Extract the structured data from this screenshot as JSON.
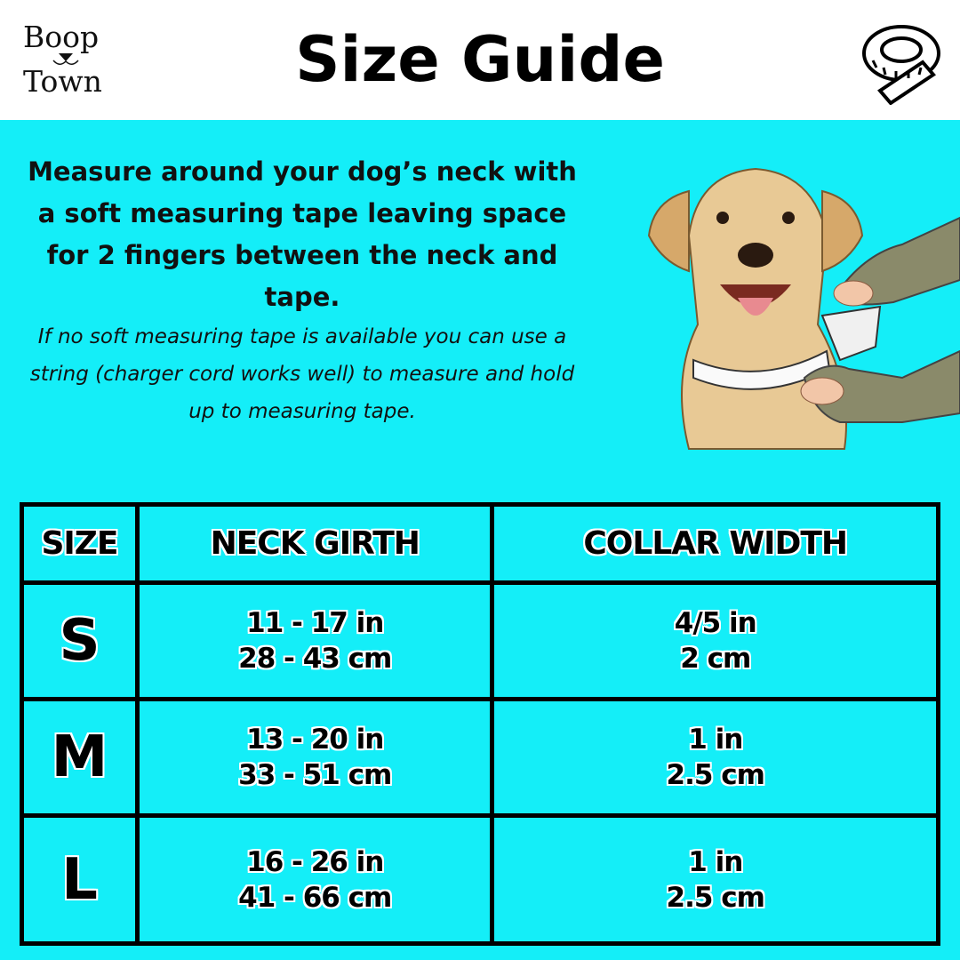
{
  "brand": {
    "line1": "Boop",
    "line2": "Town"
  },
  "header": {
    "title": "Size Guide",
    "icon": "measuring-tape-icon"
  },
  "intro": {
    "instruction": "Measure around your dog’s neck with a soft measuring tape leaving space for 2 fingers between the neck and tape.",
    "note": "If no soft measuring tape is available you can use a string (charger cord works well) to measure and hold up to measuring tape."
  },
  "colors": {
    "background": "#14eef8",
    "header": "#ffffff",
    "text": "#000000"
  },
  "table": {
    "headers": [
      "SIZE",
      "NECK GIRTH",
      "COLLAR WIDTH"
    ],
    "rows": [
      {
        "size": "S",
        "girth_in": "11 - 17 in",
        "girth_cm": "28 - 43 cm",
        "width_in": "4/5 in",
        "width_cm": "2 cm"
      },
      {
        "size": "M",
        "girth_in": "13 - 20 in",
        "girth_cm": "33 - 51 cm",
        "width_in": "1 in",
        "width_cm": "2.5 cm"
      },
      {
        "size": "L",
        "girth_in": "16 - 26 in",
        "girth_cm": "41 - 66 cm",
        "width_in": "1 in",
        "width_cm": "2.5 cm"
      }
    ]
  }
}
